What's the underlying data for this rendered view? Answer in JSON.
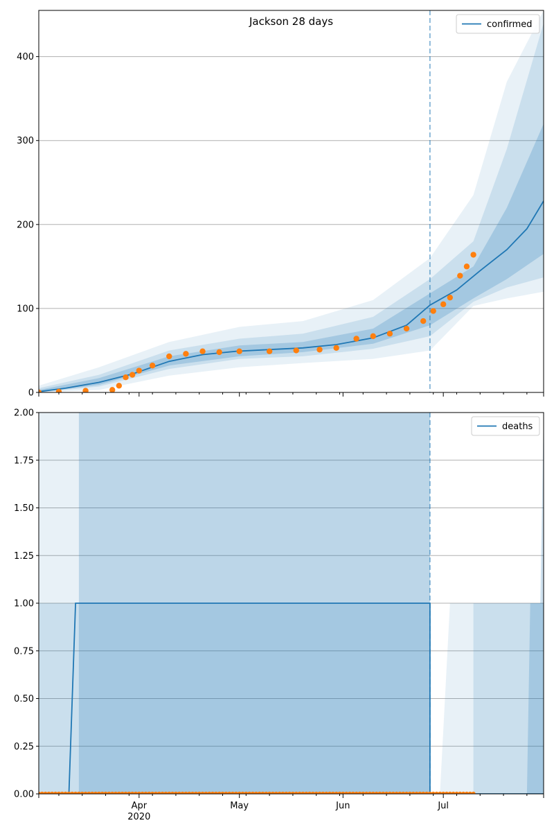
{
  "chart_data": [
    {
      "type": "line",
      "title": "Jackson 28 days",
      "legend": [
        "confirmed"
      ],
      "legend_position": "top-right",
      "x_range": [
        "2020-03-02",
        "2020-07-31"
      ],
      "x_tick_labels": [
        "Apr",
        "May",
        "Jun",
        "Jul"
      ],
      "x_year_label": "2020",
      "ylim": [
        0,
        455
      ],
      "y_ticks": [
        0,
        100,
        200,
        300,
        400
      ],
      "y_tick_labels": [
        "0",
        "100",
        "200",
        "300",
        "400"
      ],
      "grid": "horizontal",
      "forecast_start": "2020-06-27",
      "series": [
        {
          "name": "confirmed",
          "color": "#1f77b4",
          "kind": "line",
          "x": [
            "2020-03-02",
            "2020-03-10",
            "2020-03-20",
            "2020-03-30",
            "2020-04-10",
            "2020-04-20",
            "2020-04-30",
            "2020-05-10",
            "2020-05-20",
            "2020-05-30",
            "2020-06-10",
            "2020-06-20",
            "2020-06-27",
            "2020-07-05",
            "2020-07-12",
            "2020-07-20",
            "2020-07-26",
            "2020-07-31"
          ],
          "values": [
            1,
            5,
            12,
            22,
            37,
            45,
            49,
            51,
            53,
            57,
            65,
            80,
            104,
            122,
            145,
            170,
            195,
            228
          ]
        },
        {
          "kind": "points",
          "color": "#ff7f0e",
          "x": [
            "2020-03-02",
            "2020-03-08",
            "2020-03-16",
            "2020-03-24",
            "2020-03-26",
            "2020-03-28",
            "2020-03-30",
            "2020-04-01",
            "2020-04-05",
            "2020-04-10",
            "2020-04-15",
            "2020-04-20",
            "2020-04-25",
            "2020-05-01",
            "2020-05-10",
            "2020-05-18",
            "2020-05-25",
            "2020-05-30",
            "2020-06-05",
            "2020-06-10",
            "2020-06-15",
            "2020-06-20",
            "2020-06-25",
            "2020-06-28",
            "2020-07-01",
            "2020-07-03",
            "2020-07-06",
            "2020-07-08",
            "2020-07-10"
          ],
          "values": [
            0,
            1,
            2,
            3,
            8,
            18,
            21,
            26,
            32,
            43,
            46,
            49,
            48,
            49,
            49,
            50,
            51,
            53,
            64,
            67,
            70,
            76,
            85,
            97,
            105,
            113,
            139,
            150,
            164
          ]
        }
      ],
      "bands": [
        {
          "opacity": "outer",
          "x": [
            "2020-03-02",
            "2020-03-20",
            "2020-04-10",
            "2020-05-01",
            "2020-05-20",
            "2020-06-10",
            "2020-06-27",
            "2020-07-10",
            "2020-07-20",
            "2020-07-31"
          ],
          "lower": [
            0,
            3,
            20,
            30,
            35,
            40,
            50,
            103,
            112,
            120
          ],
          "upper": [
            8,
            30,
            60,
            78,
            85,
            110,
            160,
            235,
            370,
            455
          ]
        },
        {
          "opacity": "middle",
          "x": [
            "2020-03-02",
            "2020-03-20",
            "2020-04-10",
            "2020-05-01",
            "2020-05-20",
            "2020-06-10",
            "2020-06-27",
            "2020-07-10",
            "2020-07-20",
            "2020-07-31"
          ],
          "lower": [
            0,
            7,
            28,
            40,
            43,
            52,
            67,
            108,
            125,
            137
          ],
          "upper": [
            5,
            21,
            50,
            64,
            70,
            90,
            135,
            180,
            290,
            440
          ]
        },
        {
          "opacity": "inner",
          "x": [
            "2020-03-02",
            "2020-03-20",
            "2020-04-10",
            "2020-05-01",
            "2020-05-20",
            "2020-06-10",
            "2020-06-27",
            "2020-07-10",
            "2020-07-20",
            "2020-07-31"
          ],
          "lower": [
            0,
            9,
            32,
            43,
            48,
            58,
            80,
            112,
            135,
            165
          ],
          "upper": [
            3,
            17,
            43,
            56,
            60,
            76,
            118,
            150,
            220,
            320
          ]
        }
      ]
    },
    {
      "type": "line",
      "legend": [
        "deaths"
      ],
      "legend_position": "top-right",
      "x_range": [
        "2020-03-02",
        "2020-07-31"
      ],
      "x_tick_labels": [
        "Apr",
        "May",
        "Jun",
        "Jul"
      ],
      "x_year_label": "2020",
      "ylim": [
        0,
        2
      ],
      "y_ticks": [
        0,
        0.25,
        0.5,
        0.75,
        1,
        1.25,
        1.5,
        1.75,
        2
      ],
      "y_tick_labels": [
        "0.00",
        "0.25",
        "0.50",
        "0.75",
        "1.00",
        "1.25",
        "1.50",
        "1.75",
        "2.00"
      ],
      "grid": "horizontal",
      "forecast_start": "2020-06-27",
      "series": [
        {
          "name": "deaths",
          "color": "#1f77b4",
          "kind": "line",
          "x": [
            "2020-03-02",
            "2020-03-11",
            "2020-03-13",
            "2020-06-27",
            "2020-06-27",
            "2020-07-31"
          ],
          "values": [
            0,
            0,
            1,
            1,
            0,
            0
          ]
        },
        {
          "kind": "points",
          "color": "#ff7f0e",
          "x_start": "2020-03-02",
          "x_end": "2020-07-10",
          "value": 0
        }
      ],
      "bands": [
        {
          "opacity": "outer",
          "x": [
            "2020-03-02",
            "2020-03-14",
            "2020-06-27"
          ],
          "lower": [
            0,
            0,
            0
          ],
          "upper": [
            2,
            2,
            2
          ]
        },
        {
          "opacity": "middle",
          "x": [
            "2020-03-02",
            "2020-03-14",
            "2020-06-27"
          ],
          "lower": [
            0,
            0,
            0
          ],
          "upper": [
            1,
            1,
            1
          ]
        },
        {
          "opacity": "inner",
          "x": [
            "2020-03-14",
            "2020-06-27"
          ],
          "lower": [
            0,
            0
          ],
          "upper": [
            2,
            2
          ]
        },
        {
          "opacity": "outer",
          "x": [
            "2020-06-30",
            "2020-07-03",
            "2020-07-31"
          ],
          "lower": [
            0,
            0,
            0
          ],
          "upper": [
            0,
            1,
            1
          ]
        },
        {
          "opacity": "outer",
          "x": [
            "2020-07-18",
            "2020-07-20",
            "2020-07-31"
          ],
          "lower": [
            1,
            2,
            2
          ],
          "upper": [
            1,
            2,
            2
          ]
        },
        {
          "opacity": "middle",
          "x": [
            "2020-07-10",
            "2020-07-12",
            "2020-07-31"
          ],
          "lower": [
            0,
            0,
            0
          ],
          "upper": [
            1,
            1,
            1
          ]
        },
        {
          "opacity": "middle",
          "x": [
            "2020-07-19",
            "2020-07-21",
            "2020-07-31"
          ],
          "lower": [
            1,
            2,
            2
          ],
          "upper": [
            1,
            2,
            2
          ]
        },
        {
          "opacity": "inner",
          "x": [
            "2020-07-26",
            "2020-07-27",
            "2020-07-31"
          ],
          "lower": [
            0,
            0,
            0
          ],
          "upper": [
            0,
            1,
            1
          ]
        },
        {
          "opacity": "inner",
          "x": [
            "2020-07-30",
            "2020-07-31"
          ],
          "lower": [
            1,
            1
          ],
          "upper": [
            1,
            2
          ]
        }
      ]
    }
  ]
}
